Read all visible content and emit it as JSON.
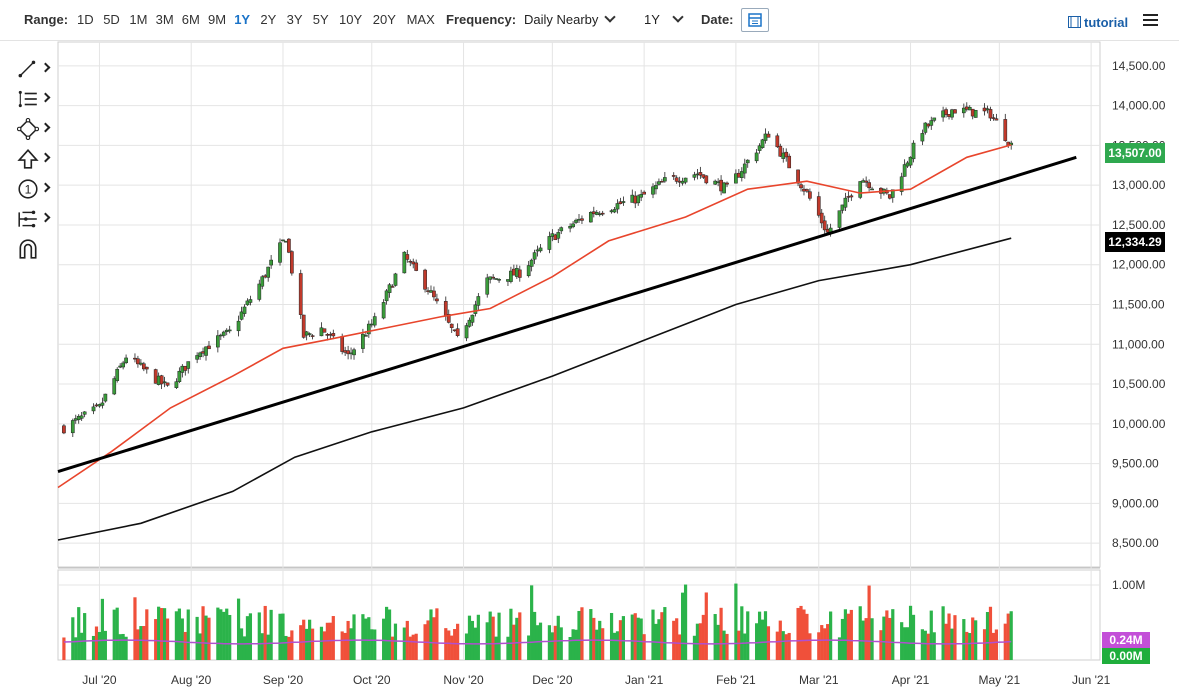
{
  "toolbar": {
    "range_label": "Range:",
    "ranges": [
      "1D",
      "5D",
      "1M",
      "3M",
      "6M",
      "9M",
      "1Y",
      "2Y",
      "3Y",
      "5Y",
      "10Y",
      "20Y",
      "MAX"
    ],
    "active_range": "1Y",
    "frequency_label": "Frequency:",
    "frequency_value": "Daily Nearby",
    "period_value": "1Y",
    "date_label": "Date:",
    "date_icon": "calendar-icon",
    "tutorial_label": "tutorial",
    "tutorial_icon": "film-icon",
    "menu_icon": "hamburger-icon"
  },
  "tools": [
    {
      "name": "trendline-tool",
      "icon": "line-segment-icon"
    },
    {
      "name": "fibonacci-tool",
      "icon": "list-lines-icon"
    },
    {
      "name": "shapes-tool",
      "icon": "diamond-nodes-icon"
    },
    {
      "name": "arrow-tool",
      "icon": "up-arrow-icon"
    },
    {
      "name": "annotation-tool",
      "icon": "circled-one-icon"
    },
    {
      "name": "measure-tool",
      "icon": "sliders-icon"
    },
    {
      "name": "magnet-tool",
      "icon": "magnet-icon"
    }
  ],
  "chart_data": {
    "type": "candlestick",
    "y_ticks": [
      "14,500.00",
      "14,000.00",
      "13,500.00",
      "13,000.00",
      "12,500.00",
      "12,000.00",
      "11,500.00",
      "11,000.00",
      "10,500.00",
      "10,000.00",
      "9,500.00",
      "9,000.00",
      "8,500.00"
    ],
    "ylim": [
      8200,
      14800
    ],
    "x_ticks": [
      "Jul '20",
      "Aug '20",
      "Sep '20",
      "Oct '20",
      "Nov '20",
      "Dec '20",
      "Jan '21",
      "Feb '21",
      "Mar '21",
      "Apr '21",
      "May '21",
      "Jun '21"
    ],
    "x_range": [
      "2020-06-17",
      "2021-06-04"
    ],
    "last_price": "13,507.00",
    "ma_label": "12,334.29",
    "price_color_up": "#3a9b3a",
    "price_color_down": "#c0392b",
    "ma_fast_color": "#e8452c",
    "ma_slow_color": "#111111",
    "close_series": [
      {
        "date": "2020-06-19",
        "close": 9950
      },
      {
        "date": "2020-07-01",
        "close": 10200
      },
      {
        "date": "2020-07-10",
        "close": 10850
      },
      {
        "date": "2020-07-24",
        "close": 10450
      },
      {
        "date": "2020-08-03",
        "close": 10900
      },
      {
        "date": "2020-08-14",
        "close": 11150
      },
      {
        "date": "2020-08-24",
        "close": 11750
      },
      {
        "date": "2020-09-02",
        "close": 12350
      },
      {
        "date": "2020-09-08",
        "close": 11100
      },
      {
        "date": "2020-09-14",
        "close": 11200
      },
      {
        "date": "2020-09-23",
        "close": 10850
      },
      {
        "date": "2020-10-02",
        "close": 11300
      },
      {
        "date": "2020-10-12",
        "close": 12100
      },
      {
        "date": "2020-10-20",
        "close": 11700
      },
      {
        "date": "2020-10-30",
        "close": 11050
      },
      {
        "date": "2020-11-09",
        "close": 11800
      },
      {
        "date": "2020-11-20",
        "close": 11900
      },
      {
        "date": "2020-12-01",
        "close": 12350
      },
      {
        "date": "2020-12-14",
        "close": 12650
      },
      {
        "date": "2020-12-31",
        "close": 12850
      },
      {
        "date": "2021-01-08",
        "close": 13050
      },
      {
        "date": "2021-01-19",
        "close": 13150
      },
      {
        "date": "2021-01-29",
        "close": 12950
      },
      {
        "date": "2021-02-12",
        "close": 13650
      },
      {
        "date": "2021-02-25",
        "close": 12900
      },
      {
        "date": "2021-03-04",
        "close": 12400
      },
      {
        "date": "2021-03-15",
        "close": 13100
      },
      {
        "date": "2021-03-25",
        "close": 12850
      },
      {
        "date": "2021-04-05",
        "close": 13700
      },
      {
        "date": "2021-04-15",
        "close": 13950
      },
      {
        "date": "2021-04-28",
        "close": 13900
      },
      {
        "date": "2021-05-05",
        "close": 13507
      }
    ],
    "ma_fast_series": [
      {
        "date": "2020-06-17",
        "value": 9200
      },
      {
        "date": "2020-07-05",
        "value": 9650
      },
      {
        "date": "2020-07-25",
        "value": 10200
      },
      {
        "date": "2020-08-15",
        "value": 10600
      },
      {
        "date": "2020-09-01",
        "value": 10950
      },
      {
        "date": "2020-09-15",
        "value": 11050
      },
      {
        "date": "2020-10-05",
        "value": 11200
      },
      {
        "date": "2020-10-25",
        "value": 11350
      },
      {
        "date": "2020-11-10",
        "value": 11450
      },
      {
        "date": "2020-12-01",
        "value": 11850
      },
      {
        "date": "2020-12-20",
        "value": 12300
      },
      {
        "date": "2021-01-15",
        "value": 12600
      },
      {
        "date": "2021-02-05",
        "value": 12950
      },
      {
        "date": "2021-02-25",
        "value": 13050
      },
      {
        "date": "2021-03-15",
        "value": 12900
      },
      {
        "date": "2021-04-01",
        "value": 12950
      },
      {
        "date": "2021-04-20",
        "value": 13350
      },
      {
        "date": "2021-05-05",
        "value": 13507
      }
    ],
    "ma_slow_series": [
      {
        "date": "2020-06-17",
        "value": 8540
      },
      {
        "date": "2020-07-15",
        "value": 8750
      },
      {
        "date": "2020-08-15",
        "value": 9150
      },
      {
        "date": "2020-09-05",
        "value": 9580
      },
      {
        "date": "2020-10-01",
        "value": 9900
      },
      {
        "date": "2020-11-01",
        "value": 10200
      },
      {
        "date": "2020-12-01",
        "value": 10600
      },
      {
        "date": "2021-01-01",
        "value": 11050
      },
      {
        "date": "2021-02-01",
        "value": 11500
      },
      {
        "date": "2021-03-01",
        "value": 11800
      },
      {
        "date": "2021-04-01",
        "value": 12000
      },
      {
        "date": "2021-05-05",
        "value": 12334
      }
    ],
    "trendline": {
      "start": {
        "date": "2020-06-17",
        "value": 9400
      },
      "end": {
        "date": "2021-05-27",
        "value": 13350
      }
    },
    "volume": {
      "y_ticks": [
        "1.00M"
      ],
      "ylim": [
        0,
        1200000
      ],
      "label_a": "0.24M",
      "label_b": "0.00M",
      "label_a_color": "#c34fd8",
      "label_b_color": "#1fae3c",
      "ma_color": "#b04fd0"
    }
  }
}
